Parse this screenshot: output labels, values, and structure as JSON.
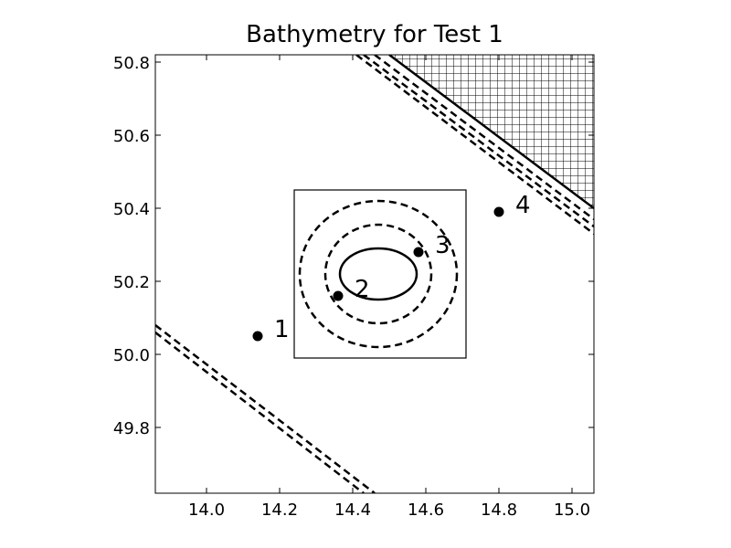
{
  "chart_data": {
    "type": "scatter",
    "title": "Bathymetry for Test 1",
    "xlabel": "",
    "ylabel": "",
    "xlim": [
      13.86,
      15.06
    ],
    "ylim": [
      49.62,
      50.82
    ],
    "x_ticks": [
      "14.0",
      "14.2",
      "14.4",
      "14.6",
      "14.8",
      "15.0"
    ],
    "y_ticks": [
      "49.8",
      "50.0",
      "50.2",
      "50.4",
      "50.6",
      "50.8"
    ],
    "grid": false,
    "points": [
      {
        "label": "1",
        "x": 14.14,
        "y": 50.05
      },
      {
        "label": "2",
        "x": 14.36,
        "y": 50.16
      },
      {
        "label": "3",
        "x": 14.58,
        "y": 50.28
      },
      {
        "label": "4",
        "x": 14.8,
        "y": 50.39
      }
    ],
    "box": {
      "x": [
        14.24,
        14.71
      ],
      "y": [
        49.99,
        50.45
      ]
    },
    "ellipses": [
      {
        "cx": 14.47,
        "cy": 50.22,
        "rx": 0.215,
        "ry": 0.2,
        "style": "dashed"
      },
      {
        "cx": 14.47,
        "cy": 50.22,
        "rx": 0.145,
        "ry": 0.135,
        "style": "dashed"
      },
      {
        "cx": 14.47,
        "cy": 50.22,
        "rx": 0.105,
        "ry": 0.07,
        "style": "solid"
      }
    ],
    "contours": [
      {
        "style": "solid",
        "from": [
          14.5,
          50.82
        ],
        "to": [
          15.06,
          50.4
        ]
      },
      {
        "style": "dashed",
        "from": [
          14.46,
          50.82
        ],
        "to": [
          15.06,
          50.37
        ]
      },
      {
        "style": "dashed",
        "from": [
          14.43,
          50.82
        ],
        "to": [
          15.06,
          50.35
        ]
      },
      {
        "style": "dashed",
        "from": [
          14.41,
          50.82
        ],
        "to": [
          15.06,
          50.33
        ]
      },
      {
        "style": "dashed",
        "from": [
          13.86,
          50.08
        ],
        "to": [
          14.46,
          49.62
        ]
      },
      {
        "style": "dashed",
        "from": [
          13.86,
          50.06
        ],
        "to": [
          14.43,
          49.62
        ]
      }
    ],
    "shaded_region": {
      "pattern": "crosshatch",
      "vertices": [
        [
          14.5,
          50.82
        ],
        [
          15.06,
          50.82
        ],
        [
          15.06,
          50.4
        ]
      ]
    }
  }
}
